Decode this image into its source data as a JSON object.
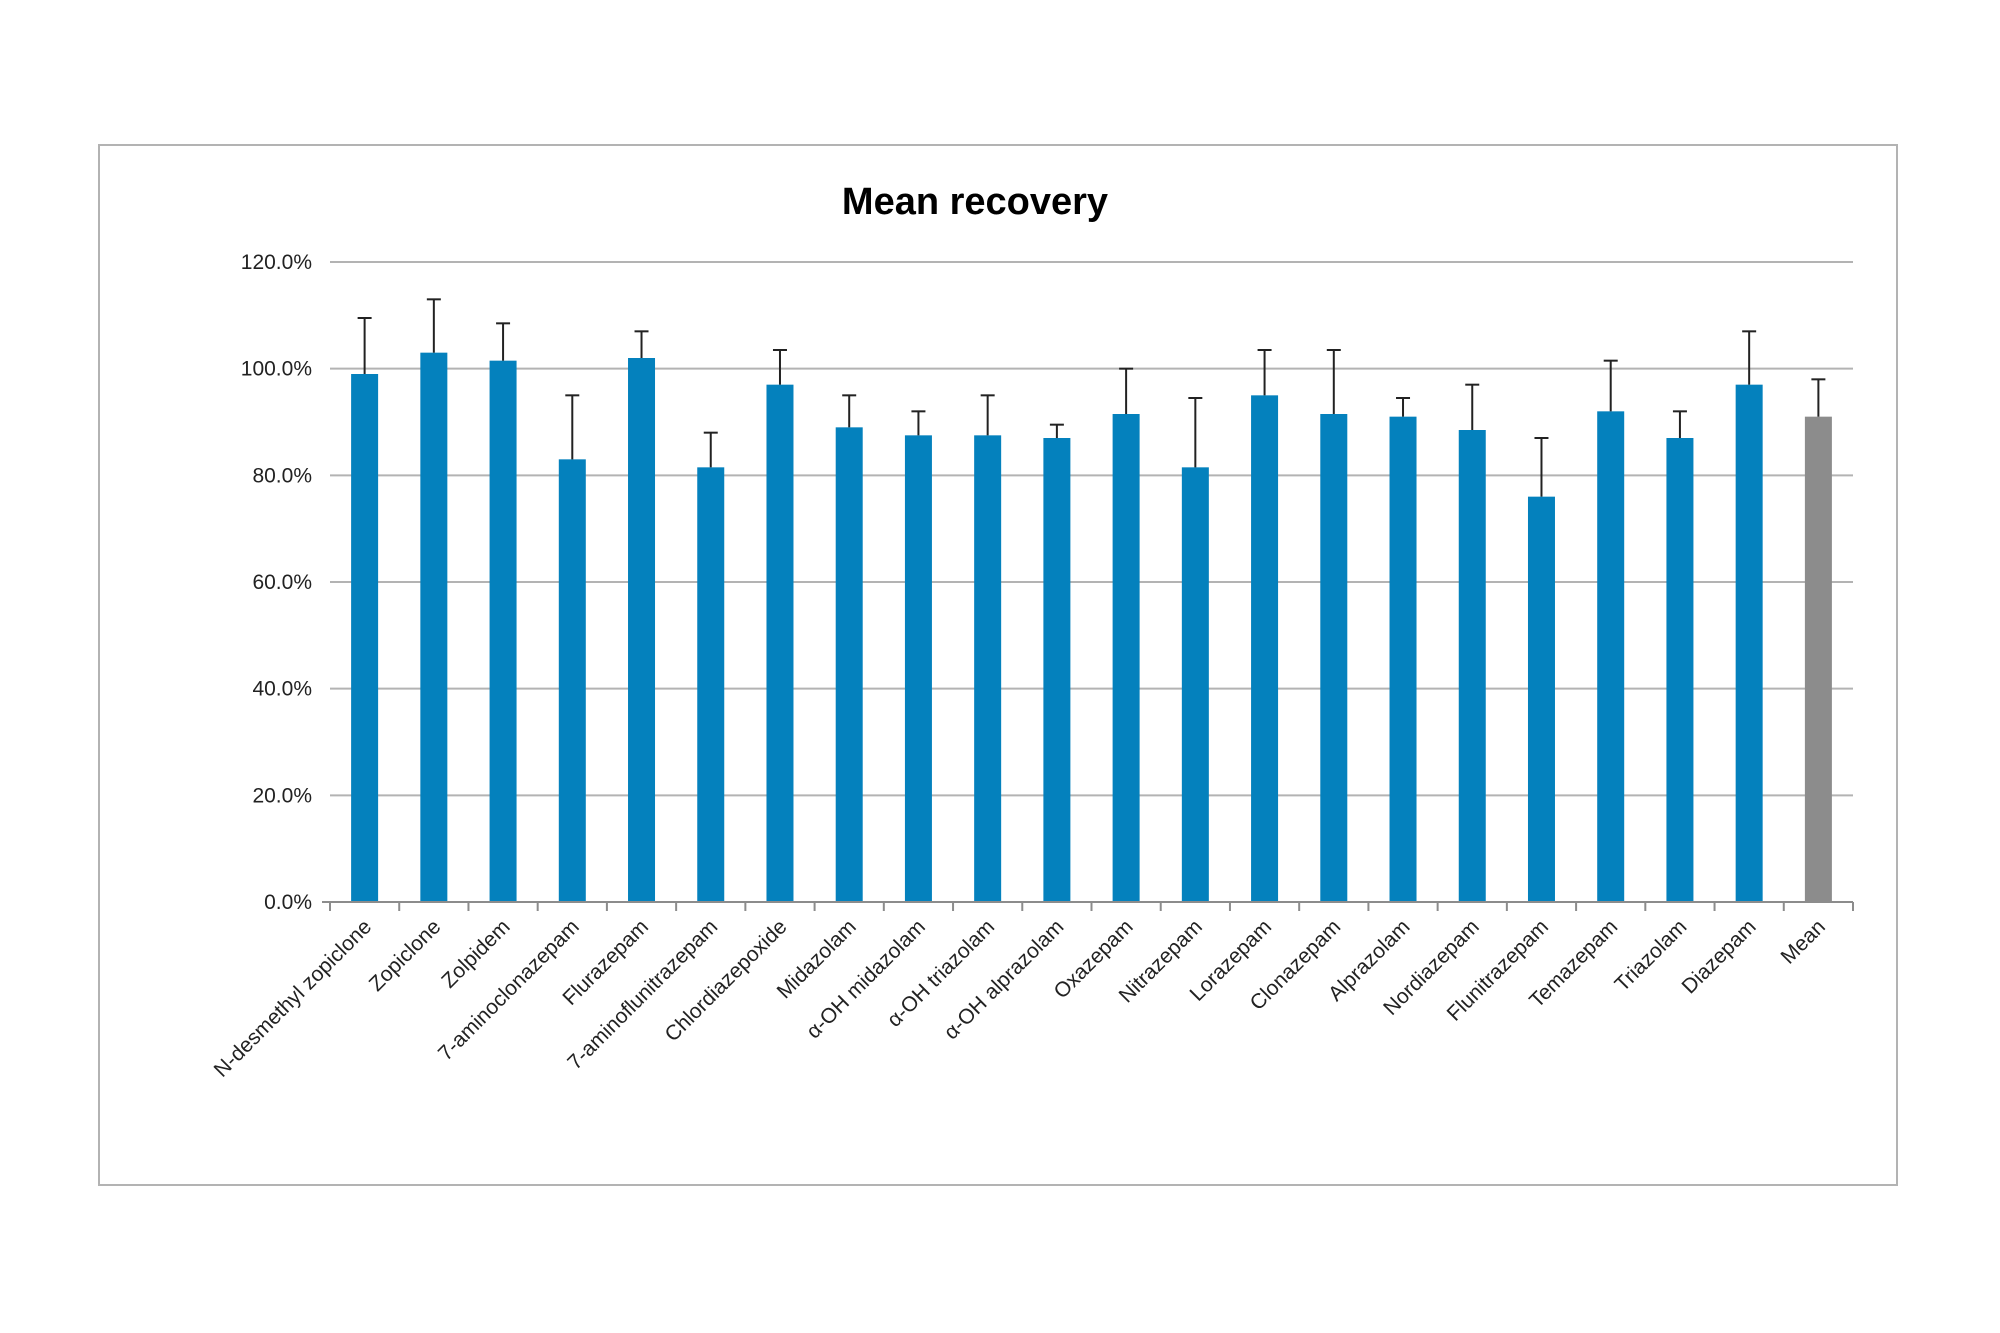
{
  "chart_data": {
    "type": "bar",
    "title": "Mean recovery",
    "xlabel": "",
    "ylabel": "",
    "ylim": [
      0,
      1.2
    ],
    "y_ticks": [
      {
        "value": 0.0,
        "label": "0.0%"
      },
      {
        "value": 0.2,
        "label": "20.0%"
      },
      {
        "value": 0.4,
        "label": "40.0%"
      },
      {
        "value": 0.6,
        "label": "60.0%"
      },
      {
        "value": 0.8,
        "label": "80.0%"
      },
      {
        "value": 1.0,
        "label": "100.0%"
      },
      {
        "value": 1.2,
        "label": "120.0%"
      }
    ],
    "grid": true,
    "legend": "none",
    "error_bars": "upper",
    "categories": [
      "N-desmethyl zopiclone",
      "Zopiclone",
      "Zolpidem",
      "7-aminoclonazepam",
      "Flurazepam",
      "7-aminoflunitrazepam",
      "Chlordiazepoxide",
      "Midazolam",
      "α-OH midazolam",
      "α-OH triazolam",
      "α-OH alprazolam",
      "Oxazepam",
      "Nitrazepam",
      "Lorazepam",
      "Clonazepam",
      "Alprazolam",
      "Nordiazepam",
      "Flunitrazepam",
      "Temazepam",
      "Triazolam",
      "Diazepam",
      "Mean"
    ],
    "values": [
      0.99,
      1.03,
      1.015,
      0.83,
      1.02,
      0.815,
      0.97,
      0.89,
      0.875,
      0.875,
      0.87,
      0.915,
      0.815,
      0.95,
      0.915,
      0.91,
      0.885,
      0.76,
      0.92,
      0.87,
      0.97,
      0.91
    ],
    "errors": [
      0.105,
      0.1,
      0.07,
      0.12,
      0.05,
      0.065,
      0.065,
      0.06,
      0.045,
      0.075,
      0.025,
      0.085,
      0.13,
      0.085,
      0.12,
      0.035,
      0.085,
      0.11,
      0.095,
      0.05,
      0.1,
      0.07
    ],
    "colors": {
      "bar": "#0481bd",
      "mean_bar": "#8c8c8c",
      "gridline": "#b3b3b3",
      "axis": "#8c8c8c",
      "error_bar": "#222222"
    }
  }
}
